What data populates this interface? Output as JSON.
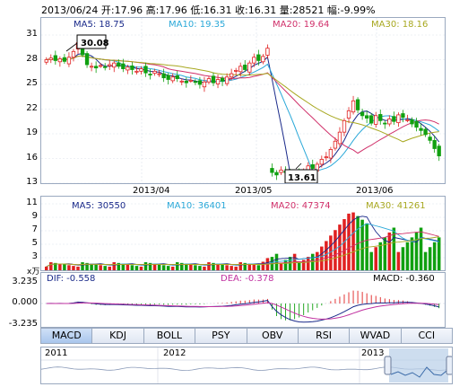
{
  "header": {
    "date": "2013/06/24",
    "open": "开:17.96",
    "high": "高:17.96",
    "low": "低:16.31",
    "close": "收:16.31",
    "volume": "量:28521",
    "change": "幅:-9.99%"
  },
  "price_panel": {
    "ma5": "MA5: 18.75",
    "ma10": "MA10: 19.35",
    "ma20": "MA20: 19.64",
    "ma30": "MA30: 18.16",
    "y_ticks": [
      "31",
      "28",
      "25",
      "22",
      "19",
      "16",
      "13"
    ],
    "x_ticks": [
      "2013/04",
      "2013/05",
      "2013/06"
    ],
    "high_marker": "30.08",
    "low_marker": "13.61"
  },
  "volume_panel": {
    "ma5": "MA5: 30550",
    "ma10": "MA10: 36401",
    "ma20": "MA20: 47374",
    "ma30": "MA30: 41261",
    "y_ticks": [
      "11",
      "9",
      "7",
      "5",
      "3"
    ],
    "unit": "x万"
  },
  "macd_panel": {
    "dif": "DIF: -0.558",
    "dea": "DEA: -0.378",
    "macd": "MACD: -0.360",
    "y_ticks": [
      "3.235",
      "0.000",
      "-3.235"
    ]
  },
  "tabs": [
    "MACD",
    "KDJ",
    "BOLL",
    "PSY",
    "OBV",
    "RSI",
    "WVAD",
    "CCI"
  ],
  "navigator": {
    "years": [
      "2011",
      "2012",
      "2013"
    ]
  },
  "colors": {
    "up": "#e02020",
    "down": "#10a010",
    "ma5": "#1a2a8a",
    "ma10": "#2aa8d8",
    "ma20": "#d0306a",
    "ma30": "#a8a820"
  }
}
